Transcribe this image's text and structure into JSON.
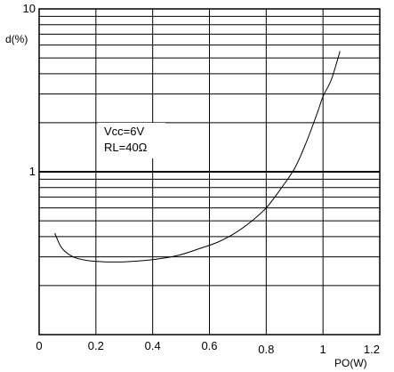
{
  "chart_data": {
    "type": "line",
    "ylabel": "d(%)",
    "xlabel": "PO(W)",
    "yscale": "log",
    "ylim": [
      0.1,
      10
    ],
    "xlim": [
      0,
      1.2
    ],
    "x_ticks": [
      "0",
      "0.2",
      "0.4",
      "0.6",
      "0.8",
      "1",
      "1.2"
    ],
    "y_ticks": [
      "10",
      "1"
    ],
    "grid": true,
    "annotations": [
      "Vcc=6V",
      "RL=40Ω"
    ],
    "series": [
      {
        "x": [
          0.055,
          0.08,
          0.12,
          0.17,
          0.23,
          0.3,
          0.37,
          0.44,
          0.5,
          0.56,
          0.63,
          0.69,
          0.75,
          0.8,
          0.85,
          0.9,
          0.94,
          0.98,
          1.0,
          1.03,
          1.06
        ],
        "y": [
          0.42,
          0.34,
          0.3,
          0.285,
          0.28,
          0.28,
          0.285,
          0.295,
          0.31,
          0.335,
          0.37,
          0.42,
          0.5,
          0.6,
          0.78,
          1.05,
          1.5,
          2.3,
          2.9,
          3.7,
          5.5
        ]
      }
    ]
  }
}
